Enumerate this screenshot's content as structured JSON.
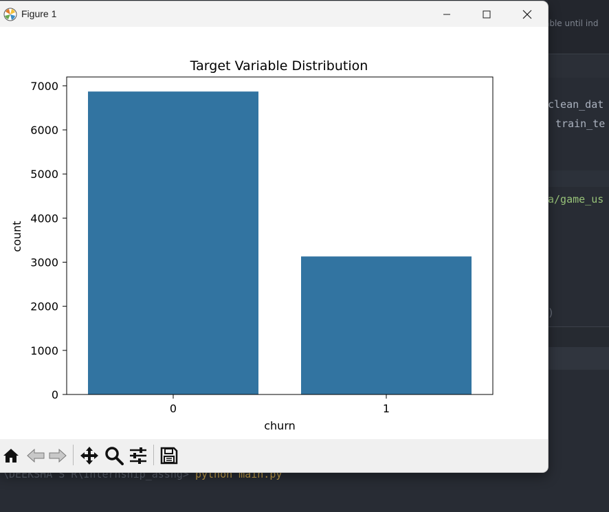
{
  "window": {
    "title": "Figure 1"
  },
  "background": {
    "editor_hint": "able until ind",
    "code_lines": [
      "clean_dat",
      "train_te",
      "a/game_us",
      ")"
    ],
    "terminal_prompt": "\\DEEKSHA S R\\Internship_assng> ",
    "terminal_command": "python main.py"
  },
  "toolbar": {
    "icons": [
      "home-icon",
      "back-arrow-icon",
      "forward-arrow-icon",
      "pan-icon",
      "zoom-icon",
      "configure-subplots-icon",
      "save-icon"
    ]
  },
  "colors": {
    "bar": "#3274a1",
    "editor_bg": "#282c34"
  },
  "chart_data": {
    "type": "bar",
    "title": "Target Variable Distribution",
    "xlabel": "churn",
    "ylabel": "count",
    "categories": [
      "0",
      "1"
    ],
    "values": [
      6870,
      3130
    ],
    "ylim": [
      0,
      7200
    ],
    "yticks": [
      0,
      1000,
      2000,
      3000,
      4000,
      5000,
      6000,
      7000
    ],
    "grid": false
  }
}
